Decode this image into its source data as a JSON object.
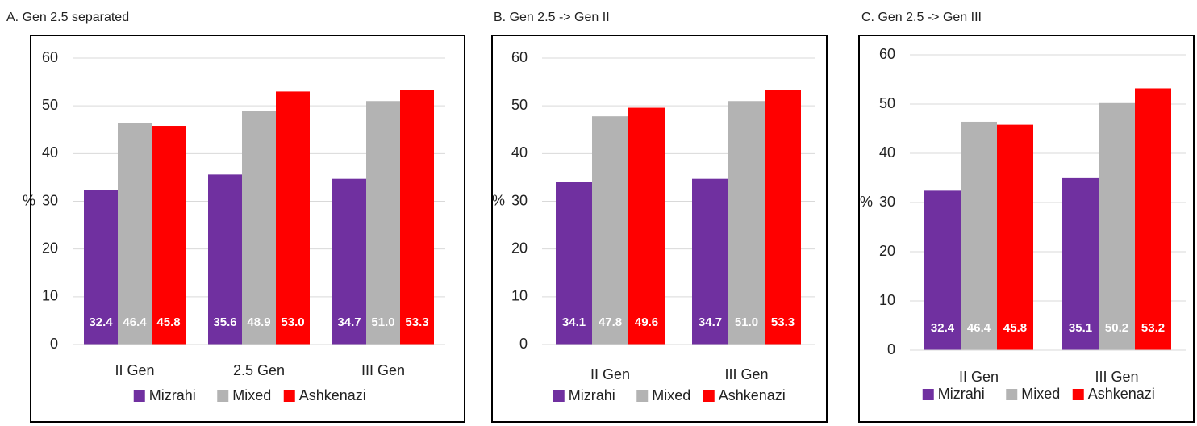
{
  "chart_data": [
    {
      "type": "bar",
      "title": "A. Gen 2.5 separated",
      "y_label": "%",
      "categories": [
        "II Gen",
        "2.5 Gen",
        "III Gen"
      ],
      "series": [
        {
          "name": "Mizrahi",
          "color": "#7030a0",
          "values": [
            32.4,
            35.6,
            34.7
          ],
          "value_labels": [
            "32.4",
            "35.6",
            "34.7"
          ]
        },
        {
          "name": "Mixed",
          "color": "#b3b3b3",
          "values": [
            46.4,
            48.9,
            51.0
          ],
          "value_labels": [
            "46.4",
            "48.9",
            "51.0"
          ]
        },
        {
          "name": "Ashkenazi",
          "color": "#ff0000",
          "values": [
            45.8,
            53.0,
            53.3
          ],
          "value_labels": [
            "45.8",
            "53.0",
            "53.3"
          ]
        }
      ],
      "ylim": [
        0,
        60
      ],
      "yticks": [
        0,
        10,
        20,
        30,
        40,
        50,
        60
      ],
      "grid": true,
      "legend": "bottom"
    },
    {
      "type": "bar",
      "title": "B. Gen 2.5 -> Gen II",
      "y_label": "%",
      "categories": [
        "II Gen",
        "III Gen"
      ],
      "series": [
        {
          "name": "Mizrahi",
          "color": "#7030a0",
          "values": [
            34.1,
            34.7
          ],
          "value_labels": [
            "34.1",
            "34.7"
          ]
        },
        {
          "name": "Mixed",
          "color": "#b3b3b3",
          "values": [
            47.8,
            51.0
          ],
          "value_labels": [
            "47.8",
            "51.0"
          ]
        },
        {
          "name": "Ashkenazi",
          "color": "#ff0000",
          "values": [
            49.6,
            53.3
          ],
          "value_labels": [
            "49.6",
            "53.3"
          ]
        }
      ],
      "ylim": [
        0,
        60
      ],
      "yticks": [
        0,
        10,
        20,
        30,
        40,
        50,
        60
      ],
      "grid": true,
      "legend": "bottom"
    },
    {
      "type": "bar",
      "title": "C. Gen 2.5 -> Gen III",
      "y_label": "%",
      "categories": [
        "II Gen",
        "III Gen"
      ],
      "series": [
        {
          "name": "Mizrahi",
          "color": "#7030a0",
          "values": [
            32.4,
            35.1
          ],
          "value_labels": [
            "32.4",
            "35.1"
          ]
        },
        {
          "name": "Mixed",
          "color": "#b3b3b3",
          "values": [
            46.4,
            50.2
          ],
          "value_labels": [
            "46.4",
            "50.2"
          ]
        },
        {
          "name": "Ashkenazi",
          "color": "#ff0000",
          "values": [
            45.8,
            53.2
          ],
          "value_labels": [
            "45.8",
            "53.2"
          ]
        }
      ],
      "ylim": [
        0,
        60
      ],
      "yticks": [
        0,
        10,
        20,
        30,
        40,
        50,
        60
      ],
      "grid": true,
      "legend": "bottom"
    }
  ]
}
